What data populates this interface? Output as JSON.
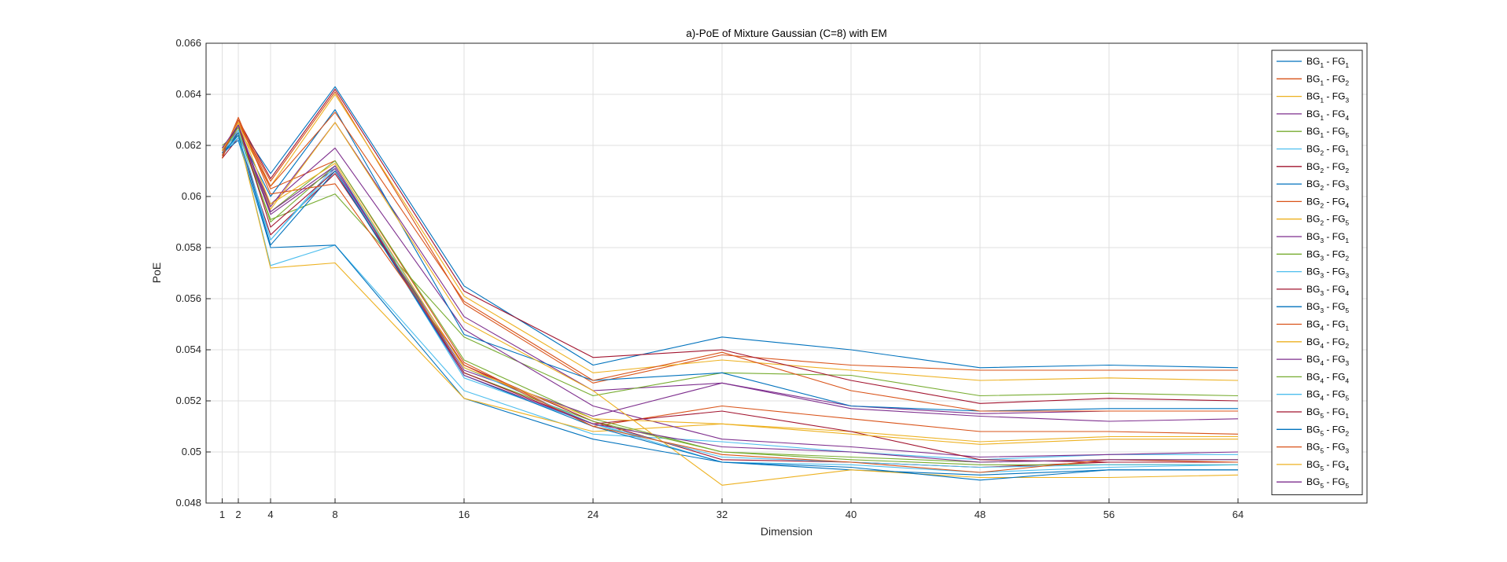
{
  "chart_data": {
    "type": "line",
    "title": "a)-PoE of Mixture Gaussian (C=8) with EM",
    "xlabel": "Dimension",
    "ylabel": "PoE",
    "x": [
      1,
      2,
      4,
      8,
      16,
      24,
      32,
      40,
      48,
      56,
      64
    ],
    "xlim": [
      0,
      72
    ],
    "ylim": [
      0.048,
      0.066
    ],
    "xticks": [
      1,
      2,
      4,
      8,
      16,
      24,
      32,
      40,
      48,
      56,
      64
    ],
    "yticks": [
      0.048,
      0.05,
      0.052,
      0.054,
      0.056,
      0.058,
      0.06,
      0.062,
      0.064,
      0.066
    ],
    "ytick_labels": [
      "0.048",
      "0.05",
      "0.052",
      "0.054",
      "0.056",
      "0.058",
      "0.06",
      "0.062",
      "0.064",
      "0.066"
    ],
    "grid": true,
    "legend_position": "right",
    "series": [
      {
        "name": "BG1 - FG1",
        "bg": "1",
        "fg": "1",
        "color": "#0072BD",
        "values": [
          0.0616,
          0.0628,
          0.0609,
          0.0643,
          0.0565,
          0.0534,
          0.0545,
          0.054,
          0.0533,
          0.0534,
          0.0533
        ]
      },
      {
        "name": "BG1 - FG2",
        "bg": "1",
        "fg": "2",
        "color": "#D95319",
        "values": [
          0.0617,
          0.0629,
          0.0606,
          0.0641,
          0.0558,
          0.0527,
          0.0538,
          0.0534,
          0.0532,
          0.0532,
          0.0532
        ]
      },
      {
        "name": "BG1 - FG3",
        "bg": "1",
        "fg": "3",
        "color": "#EDB120",
        "values": [
          0.0618,
          0.0627,
          0.0604,
          0.064,
          0.0561,
          0.0531,
          0.0536,
          0.0532,
          0.0528,
          0.0529,
          0.0528
        ]
      },
      {
        "name": "BG1 - FG4",
        "bg": "1",
        "fg": "4",
        "color": "#7E2F8E",
        "values": [
          0.0619,
          0.0626,
          0.0596,
          0.0629,
          0.0553,
          0.0524,
          0.0527,
          0.0518,
          0.0515,
          0.0516,
          0.0516
        ]
      },
      {
        "name": "BG1 - FG5",
        "bg": "1",
        "fg": "5",
        "color": "#77AC30",
        "values": [
          0.062,
          0.0625,
          0.0591,
          0.0601,
          0.0545,
          0.0522,
          0.0531,
          0.053,
          0.0522,
          0.0523,
          0.0522
        ]
      },
      {
        "name": "BG2 - FG1",
        "bg": "2",
        "fg": "1",
        "color": "#4DBEEE",
        "values": [
          0.0616,
          0.0624,
          0.0573,
          0.0581,
          0.0524,
          0.0507,
          0.0504,
          0.05,
          0.0497,
          0.0499,
          0.0499
        ]
      },
      {
        "name": "BG2 - FG2",
        "bg": "2",
        "fg": "2",
        "color": "#A2142F",
        "values": [
          0.0615,
          0.0623,
          0.0585,
          0.0609,
          0.0534,
          0.0512,
          0.0497,
          0.0496,
          0.0494,
          0.0496,
          0.0496
        ]
      },
      {
        "name": "BG2 - FG3",
        "bg": "2",
        "fg": "3",
        "color": "#0072BD",
        "values": [
          0.0617,
          0.0622,
          0.058,
          0.0581,
          0.0521,
          0.0505,
          0.0496,
          0.0493,
          0.0491,
          0.0493,
          0.0493
        ]
      },
      {
        "name": "BG2 - FG4",
        "bg": "2",
        "fg": "4",
        "color": "#D95319",
        "values": [
          0.0618,
          0.0629,
          0.0603,
          0.0614,
          0.0535,
          0.051,
          0.0518,
          0.0513,
          0.0508,
          0.0508,
          0.0507
        ]
      },
      {
        "name": "BG2 - FG5",
        "bg": "2",
        "fg": "5",
        "color": "#EDB120",
        "values": [
          0.0619,
          0.0624,
          0.0572,
          0.0574,
          0.0521,
          0.0508,
          0.0511,
          0.0508,
          0.0504,
          0.0506,
          0.0506
        ]
      },
      {
        "name": "BG3 - FG1",
        "bg": "3",
        "fg": "1",
        "color": "#7E2F8E",
        "values": [
          0.0618,
          0.0625,
          0.0597,
          0.0619,
          0.0548,
          0.0518,
          0.0505,
          0.0502,
          0.0498,
          0.0499,
          0.05
        ]
      },
      {
        "name": "BG3 - FG2",
        "bg": "3",
        "fg": "2",
        "color": "#77AC30",
        "values": [
          0.0619,
          0.0624,
          0.0594,
          0.0614,
          0.0536,
          0.0513,
          0.05,
          0.0498,
          0.0496,
          0.0497,
          0.0497
        ]
      },
      {
        "name": "BG3 - FG3",
        "bg": "3",
        "fg": "3",
        "color": "#4DBEEE",
        "values": [
          0.0617,
          0.0623,
          0.0583,
          0.0611,
          0.0529,
          0.0511,
          0.0496,
          0.0495,
          0.0492,
          0.0494,
          0.0495
        ]
      },
      {
        "name": "BG3 - FG4",
        "bg": "3",
        "fg": "4",
        "color": "#A2142F",
        "values": [
          0.0615,
          0.063,
          0.0607,
          0.0642,
          0.0563,
          0.0537,
          0.054,
          0.0528,
          0.0519,
          0.0521,
          0.052
        ]
      },
      {
        "name": "BG3 - FG5",
        "bg": "3",
        "fg": "5",
        "color": "#0072BD",
        "values": [
          0.0616,
          0.0625,
          0.06,
          0.0634,
          0.0546,
          0.0528,
          0.0531,
          0.0518,
          0.0516,
          0.0517,
          0.0517
        ]
      },
      {
        "name": "BG4 - FG1",
        "bg": "4",
        "fg": "1",
        "color": "#D95319",
        "values": [
          0.0615,
          0.063,
          0.0604,
          0.0633,
          0.0559,
          0.0528,
          0.0539,
          0.0524,
          0.0516,
          0.0516,
          0.0516
        ]
      },
      {
        "name": "BG4 - FG2",
        "bg": "4",
        "fg": "2",
        "color": "#EDB120",
        "values": [
          0.0617,
          0.0626,
          0.0595,
          0.0629,
          0.0551,
          0.0524,
          0.0487,
          0.0493,
          0.049,
          0.049,
          0.0491
        ]
      },
      {
        "name": "BG4 - FG3",
        "bg": "4",
        "fg": "3",
        "color": "#7E2F8E",
        "values": [
          0.0619,
          0.0627,
          0.0593,
          0.0611,
          0.0532,
          0.0514,
          0.0527,
          0.0517,
          0.0514,
          0.0512,
          0.0513
        ]
      },
      {
        "name": "BG4 - FG4",
        "bg": "4",
        "fg": "4",
        "color": "#77AC30",
        "values": [
          0.0618,
          0.0627,
          0.059,
          0.0612,
          0.0531,
          0.0512,
          0.05,
          0.0497,
          0.0495,
          0.0495,
          0.0495
        ]
      },
      {
        "name": "BG4 - FG5",
        "bg": "4",
        "fg": "5",
        "color": "#4DBEEE",
        "values": [
          0.0617,
          0.0626,
          0.0583,
          0.0612,
          0.0533,
          0.0511,
          0.0498,
          0.0496,
          0.0494,
          0.0495,
          0.0495
        ]
      },
      {
        "name": "BG5 - FG1",
        "bg": "5",
        "fg": "1",
        "color": "#A2142F",
        "values": [
          0.0618,
          0.0628,
          0.0588,
          0.061,
          0.0531,
          0.0511,
          0.0516,
          0.0508,
          0.0497,
          0.0496,
          0.0496
        ]
      },
      {
        "name": "BG5 - FG2",
        "bg": "5",
        "fg": "2",
        "color": "#0072BD",
        "values": [
          0.0617,
          0.0624,
          0.0581,
          0.061,
          0.053,
          0.051,
          0.0496,
          0.0494,
          0.0489,
          0.0493,
          0.0493
        ]
      },
      {
        "name": "BG5 - FG3",
        "bg": "5",
        "fg": "3",
        "color": "#D95319",
        "values": [
          0.0616,
          0.0631,
          0.0601,
          0.0605,
          0.0534,
          0.051,
          0.0499,
          0.0496,
          0.0492,
          0.0497,
          0.0496
        ]
      },
      {
        "name": "BG5 - FG4",
        "bg": "5",
        "fg": "4",
        "color": "#EDB120",
        "values": [
          0.0618,
          0.0629,
          0.0597,
          0.0613,
          0.0533,
          0.0513,
          0.0511,
          0.0507,
          0.0503,
          0.0505,
          0.0505
        ]
      },
      {
        "name": "BG5 - FG5",
        "bg": "5",
        "fg": "5",
        "color": "#7E2F8E",
        "values": [
          0.0619,
          0.0628,
          0.0594,
          0.0612,
          0.053,
          0.0511,
          0.0502,
          0.05,
          0.0496,
          0.0497,
          0.0497
        ]
      }
    ]
  }
}
